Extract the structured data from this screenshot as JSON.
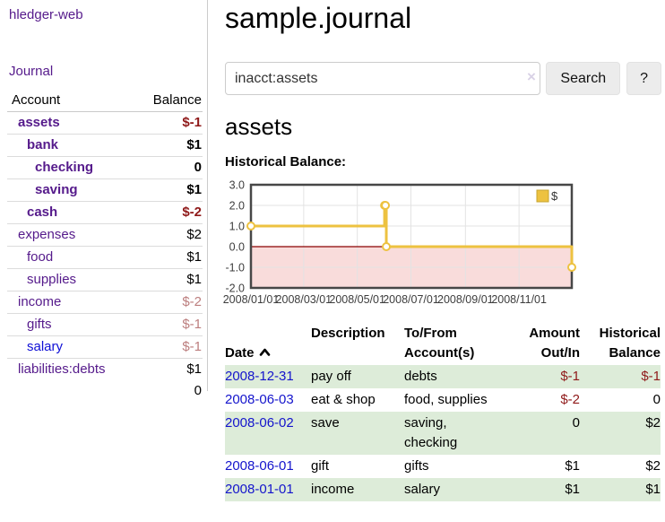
{
  "colors": {
    "link_purple": "#551a8b",
    "link_blue": "#1414cc",
    "negative_dark_red": "#8f1919",
    "negative_light_red": "#bc7e7e",
    "row_stripe_green": "#ddecd9",
    "series_gold": "#edc240",
    "negative_region_pink": "#f9dcdb",
    "zero_line_dark_red": "#8b0000"
  },
  "sidebar": {
    "app_title": "hledger-web",
    "journal_link": "Journal",
    "accounts_table": {
      "headers": {
        "account": "Account",
        "balance": "Balance"
      },
      "rows": [
        {
          "name": "assets",
          "balance": "$-1",
          "level": 0,
          "bold": true
        },
        {
          "name": "bank",
          "balance": "$1",
          "level": 1,
          "bold": true
        },
        {
          "name": "checking",
          "balance": "0",
          "level": 2,
          "bold": true
        },
        {
          "name": "saving",
          "balance": "$1",
          "level": 2,
          "bold": true
        },
        {
          "name": "cash",
          "balance": "$-2",
          "level": 1,
          "bold": true
        },
        {
          "name": "expenses",
          "balance": "$2",
          "level": 0,
          "bold": false
        },
        {
          "name": "food",
          "balance": "$1",
          "level": 1,
          "bold": false
        },
        {
          "name": "supplies",
          "balance": "$1",
          "level": 1,
          "bold": false
        },
        {
          "name": "income",
          "balance": "$-2",
          "level": 0,
          "bold": false
        },
        {
          "name": "gifts",
          "balance": "$-1",
          "level": 1,
          "bold": false
        },
        {
          "name": "salary",
          "balance": "$-1",
          "level": 1,
          "bold": false,
          "blue": true
        },
        {
          "name": "liabilities:debts",
          "balance": "$1",
          "level": 0,
          "bold": false
        }
      ],
      "total": "0"
    }
  },
  "main": {
    "page_title": "sample.journal",
    "search": {
      "value": "inacct:assets",
      "clear_icon": "×",
      "button_label": "Search",
      "help_label": "?"
    },
    "section_title": "assets",
    "chart_label": "Historical Balance:"
  },
  "chart_data": {
    "type": "line",
    "title": "Historical Balance:",
    "steps": true,
    "series": [
      {
        "name": "$",
        "color": "#edc240",
        "points": [
          [
            "2008-01-01",
            1
          ],
          [
            "2008-06-01",
            2
          ],
          [
            "2008-06-02",
            2
          ],
          [
            "2008-06-03",
            0
          ],
          [
            "2008-12-31",
            -1
          ]
        ]
      }
    ],
    "xlim": [
      "2008-01-01",
      "2008-12-31"
    ],
    "ylim": [
      -2,
      3
    ],
    "x_ticks": [
      "2008/01/01",
      "2008/03/01",
      "2008/05/01",
      "2008/07/01",
      "2008/09/01",
      "2008/11/01"
    ],
    "y_ticks": [
      3,
      2,
      1,
      0,
      -1,
      -2
    ],
    "y_tick_labels": [
      "3.0",
      "2.0",
      "1.0",
      "0.0",
      "-1.0",
      "-2.0"
    ],
    "grid": true,
    "grid_color": "#e3e3e3",
    "border_color": "#474747",
    "negative_region_color": "#f9dcdb",
    "zero_line_color": "#8b0000",
    "legend": {
      "label": "$",
      "position": "top-right"
    },
    "legend_border_color": "#c7a42f"
  },
  "register_table": {
    "headers": {
      "date": "Date",
      "description": "Description",
      "accounts": "To/From\nAccount(s)",
      "amount": "Amount\nOut/In",
      "balance": "Historical\nBalance"
    },
    "rows": [
      {
        "date": "2008-12-31",
        "description": "pay off",
        "accounts": "debts",
        "amount": "$-1",
        "balance": "$-1"
      },
      {
        "date": "2008-06-03",
        "description": "eat & shop",
        "accounts": "food, supplies",
        "amount": "$-2",
        "balance": "0"
      },
      {
        "date": "2008-06-02",
        "description": "save",
        "accounts": "saving,\nchecking",
        "amount": "0",
        "balance": "$2"
      },
      {
        "date": "2008-06-01",
        "description": "gift",
        "accounts": "gifts",
        "amount": "$1",
        "balance": "$2"
      },
      {
        "date": "2008-01-01",
        "description": "income",
        "accounts": "salary",
        "amount": "$1",
        "balance": "$1"
      }
    ]
  }
}
